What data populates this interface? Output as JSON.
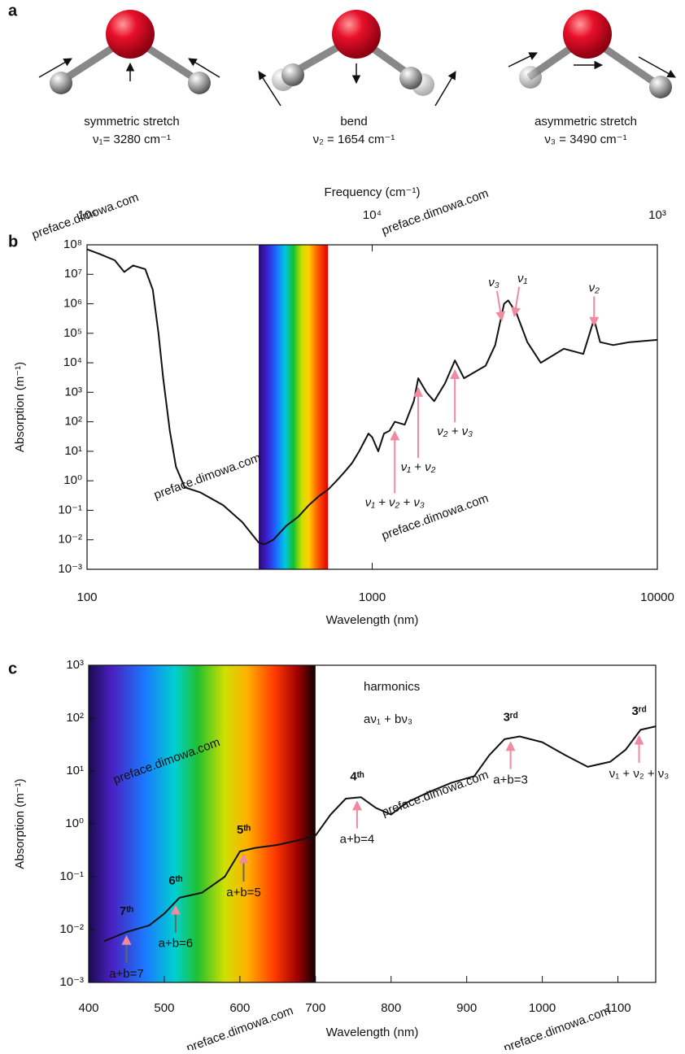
{
  "panels": {
    "a": {
      "letter": "a",
      "modes": [
        {
          "name": "symmetric stretch",
          "frequency": "ν₁= 3280 cm⁻¹"
        },
        {
          "name": "bend",
          "frequency": "ν₂ = 1654 cm⁻¹"
        },
        {
          "name": "asymmetric stretch",
          "frequency": "ν₃ = 3490 cm⁻¹"
        }
      ]
    },
    "b": {
      "letter": "b"
    },
    "c": {
      "letter": "c"
    }
  },
  "watermark": "preface.dimowa.com",
  "chart_data": [
    {
      "type": "line",
      "x_label": "Wavelength (nm)",
      "x2_label": "Frequency (cm⁻¹)",
      "y_label": "Absorption (m⁻¹)",
      "log_x": true,
      "log_y": true,
      "color": "#111111",
      "visible_band": [
        400,
        700
      ],
      "xlim": [
        100,
        10000
      ],
      "xticks": [
        100,
        1000,
        10000
      ],
      "x2lim": [
        100000,
        1000
      ],
      "x2ticks": [
        {
          "value": 100000,
          "label": "10⁵"
        },
        {
          "value": 10000,
          "label": "10⁴"
        },
        {
          "value": 1000,
          "label": "10³"
        }
      ],
      "ylim": [
        0.001,
        100000000
      ],
      "yticks": [
        {
          "value": 0.001,
          "label": "10⁻³"
        },
        {
          "value": 0.01,
          "label": "10⁻²"
        },
        {
          "value": 0.1,
          "label": "10⁻¹"
        },
        {
          "value": 1,
          "label": "10⁰"
        },
        {
          "value": 10,
          "label": "10¹"
        },
        {
          "value": 100,
          "label": "10²"
        },
        {
          "value": 1000,
          "label": "10³"
        },
        {
          "value": 10000,
          "label": "10⁴"
        },
        {
          "value": 100000,
          "label": "10⁵"
        },
        {
          "value": 1000000,
          "label": "10⁶"
        },
        {
          "value": 10000000,
          "label": "10⁷"
        },
        {
          "value": 100000000,
          "label": "10⁸"
        }
      ],
      "x": [
        100,
        110,
        125,
        135,
        145,
        160,
        170,
        178,
        185,
        195,
        205,
        220,
        250,
        300,
        350,
        400,
        420,
        450,
        500,
        550,
        600,
        650,
        700,
        750,
        800,
        850,
        900,
        970,
        1000,
        1050,
        1100,
        1150,
        1200,
        1300,
        1400,
        1450,
        1550,
        1650,
        1800,
        1950,
        2100,
        2500,
        2700,
        2900,
        3000,
        3200,
        3500,
        3900,
        4700,
        5500,
        6000,
        6300,
        7000,
        8000,
        10000
      ],
      "values": [
        70000000,
        50000000,
        30000000,
        12000000,
        20000000,
        15000000,
        3000000,
        100000,
        3000,
        50,
        3,
        0.6,
        0.4,
        0.15,
        0.04,
        0.008,
        0.007,
        0.01,
        0.03,
        0.06,
        0.15,
        0.3,
        0.5,
        1,
        2,
        4,
        10,
        40,
        30,
        10,
        40,
        50,
        100,
        80,
        500,
        3000,
        1000,
        500,
        2000,
        12000,
        3000,
        8000,
        40000,
        1000000,
        1300000,
        500000,
        50000,
        10000,
        30000,
        20000,
        300000,
        50000,
        40000,
        50000,
        60000
      ],
      "annotations": [
        {
          "label": "ν₃",
          "x": 2850
        },
        {
          "label": "ν₁",
          "x": 3150
        },
        {
          "label": "ν₂",
          "x": 6000
        },
        {
          "label": "ν₂ + ν₃",
          "x": 1950
        },
        {
          "label": "ν₁ + ν₂",
          "x": 1450
        },
        {
          "label": "ν₁ + ν₂ + ν₃",
          "x": 1200
        }
      ]
    },
    {
      "type": "line",
      "x_label": "Wavelength (nm)",
      "y_label": "Absorption (m⁻¹)",
      "log_x": false,
      "log_y": true,
      "color": "#111111",
      "visible_band": [
        400,
        700
      ],
      "notes": [
        "harmonics",
        "aν₁ + bν₃"
      ],
      "xlim": [
        400,
        1150
      ],
      "xticks": [
        400,
        500,
        600,
        700,
        800,
        900,
        1000,
        1100
      ],
      "ylim": [
        0.001,
        1000
      ],
      "yticks": [
        {
          "value": 0.001,
          "label": "10⁻³"
        },
        {
          "value": 0.01,
          "label": "10⁻²"
        },
        {
          "value": 0.1,
          "label": "10⁻¹"
        },
        {
          "value": 1,
          "label": "10⁰"
        },
        {
          "value": 10,
          "label": "10¹"
        },
        {
          "value": 100,
          "label": "10²"
        },
        {
          "value": 1000,
          "label": "10³"
        }
      ],
      "x": [
        420,
        450,
        480,
        500,
        520,
        550,
        580,
        600,
        620,
        650,
        680,
        700,
        720,
        740,
        760,
        780,
        800,
        820,
        850,
        880,
        910,
        930,
        950,
        970,
        1000,
        1030,
        1060,
        1090,
        1110,
        1130,
        1150
      ],
      "values": [
        0.006,
        0.009,
        0.012,
        0.02,
        0.04,
        0.05,
        0.1,
        0.3,
        0.35,
        0.4,
        0.5,
        0.6,
        1.5,
        3,
        3.2,
        2,
        1.5,
        2.5,
        4,
        6,
        8,
        20,
        40,
        45,
        35,
        20,
        12,
        15,
        25,
        60,
        70
      ],
      "annotations": [
        {
          "label": "7ᵗʰ",
          "sub": "a+b=7",
          "x": 450
        },
        {
          "label": "6ᵗʰ",
          "sub": "a+b=6",
          "x": 515
        },
        {
          "label": "5ᵗʰ",
          "sub": "a+b=5",
          "x": 605
        },
        {
          "label": "4ᵗʰ",
          "sub": "a+b=4",
          "x": 755
        },
        {
          "label": "3ʳᵈ",
          "sub": "a+b=3",
          "x": 958
        },
        {
          "label": "3ʳᵈ",
          "sub": "ν₁ + ν₂ + ν₃",
          "x": 1128
        }
      ]
    }
  ]
}
